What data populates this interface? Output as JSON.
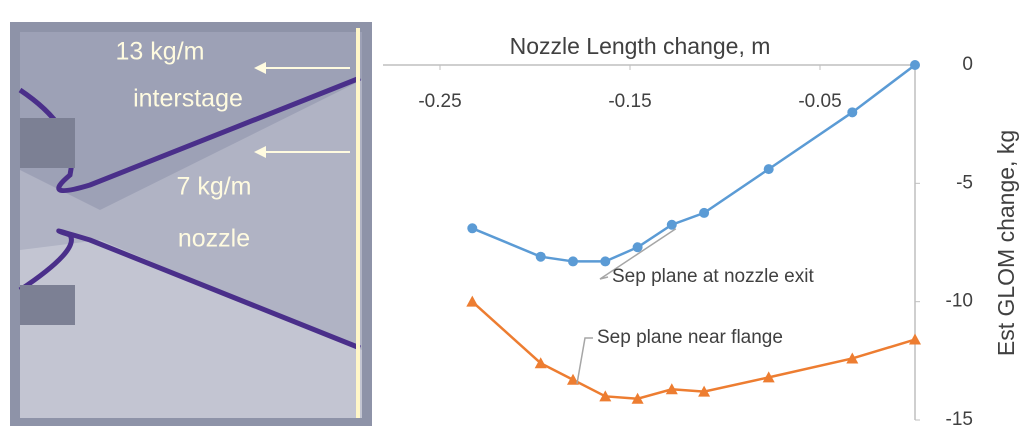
{
  "diagram": {
    "labels": [
      "13 kg/m",
      "interstage",
      "7 kg/m",
      "nozzle"
    ]
  },
  "chart_data": {
    "type": "line",
    "x_label": "Nozzle Length change, m",
    "y_label": "Est GLOM change, kg",
    "x": [
      -0.233,
      -0.197,
      -0.18,
      -0.163,
      -0.146,
      -0.128,
      -0.111,
      -0.077,
      -0.033,
      0
    ],
    "series": [
      {
        "name": "Sep plane at nozzle exit",
        "color": "#5b9bd5",
        "marker": "circle",
        "values": [
          -6.9,
          -8.1,
          -8.3,
          -8.3,
          -7.7,
          -6.75,
          -6.25,
          -4.4,
          -2.0,
          0
        ]
      },
      {
        "name": "Sep plane near flange",
        "color": "#ed7d31",
        "marker": "triangle",
        "values": [
          -10.0,
          -12.6,
          -13.3,
          -14.0,
          -14.1,
          -13.7,
          -13.8,
          -13.2,
          -12.4,
          -11.6
        ]
      }
    ],
    "xlim": [
      -0.28,
      0
    ],
    "xticks": [
      -0.25,
      -0.15,
      -0.05
    ],
    "ylim": [
      -15,
      0
    ],
    "yticks": [
      -15,
      -10,
      -5,
      0
    ],
    "grid": false
  }
}
